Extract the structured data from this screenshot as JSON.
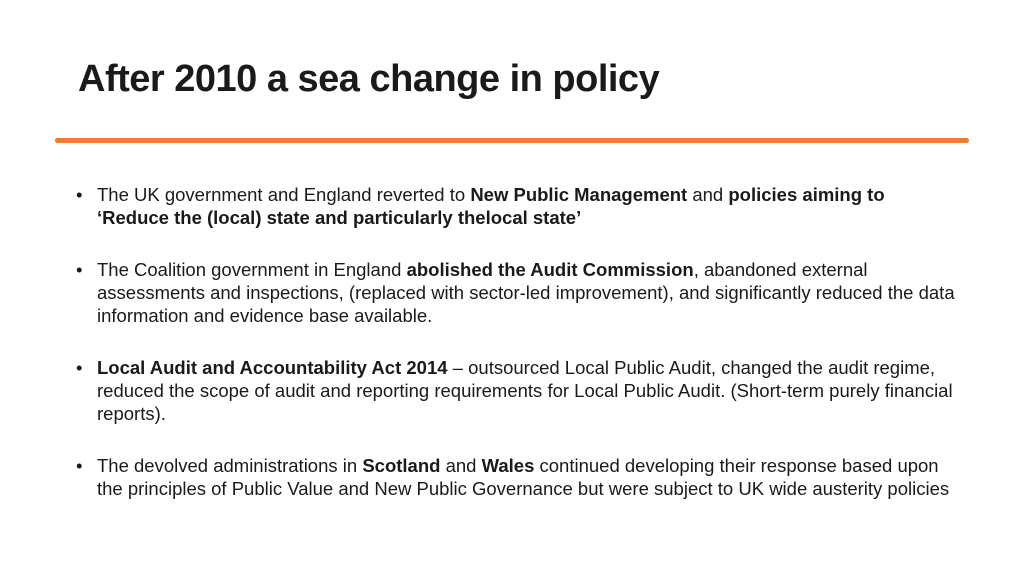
{
  "slide": {
    "title": "After 2010 a sea change in policy",
    "accent_color": "#ed7d31",
    "bullet_symbol": "•"
  },
  "bullets": [
    {
      "t1": "The UK government and England reverted to ",
      "b1": "New Public Management",
      "t2": " and ",
      "b2": "policies aiming to ‘Reduce the (local) state and particularly thelocal state’"
    },
    {
      "t1": "The Coalition government in England ",
      "b1": "abolished the Audit Commission",
      "t2": ", abandoned external assessments and inspections, (replaced with sector-led improvement), and significantly reduced the data information and evidence base available."
    },
    {
      "b1": "Local Audit and Accountability Act 2014",
      "t1": " – outsourced Local Public Audit, changed the audit regime, reduced the scope of audit and reporting requirements  for Local Public Audit. (Short-term purely financial reports)."
    },
    {
      "t1": "The devolved administrations in ",
      "b1": "Scotland",
      "t2": " and ",
      "b2": "Wales",
      "t3": " continued developing their response based upon the principles of Public Value and New Public Governance but were subject to UK wide austerity policies"
    }
  ]
}
